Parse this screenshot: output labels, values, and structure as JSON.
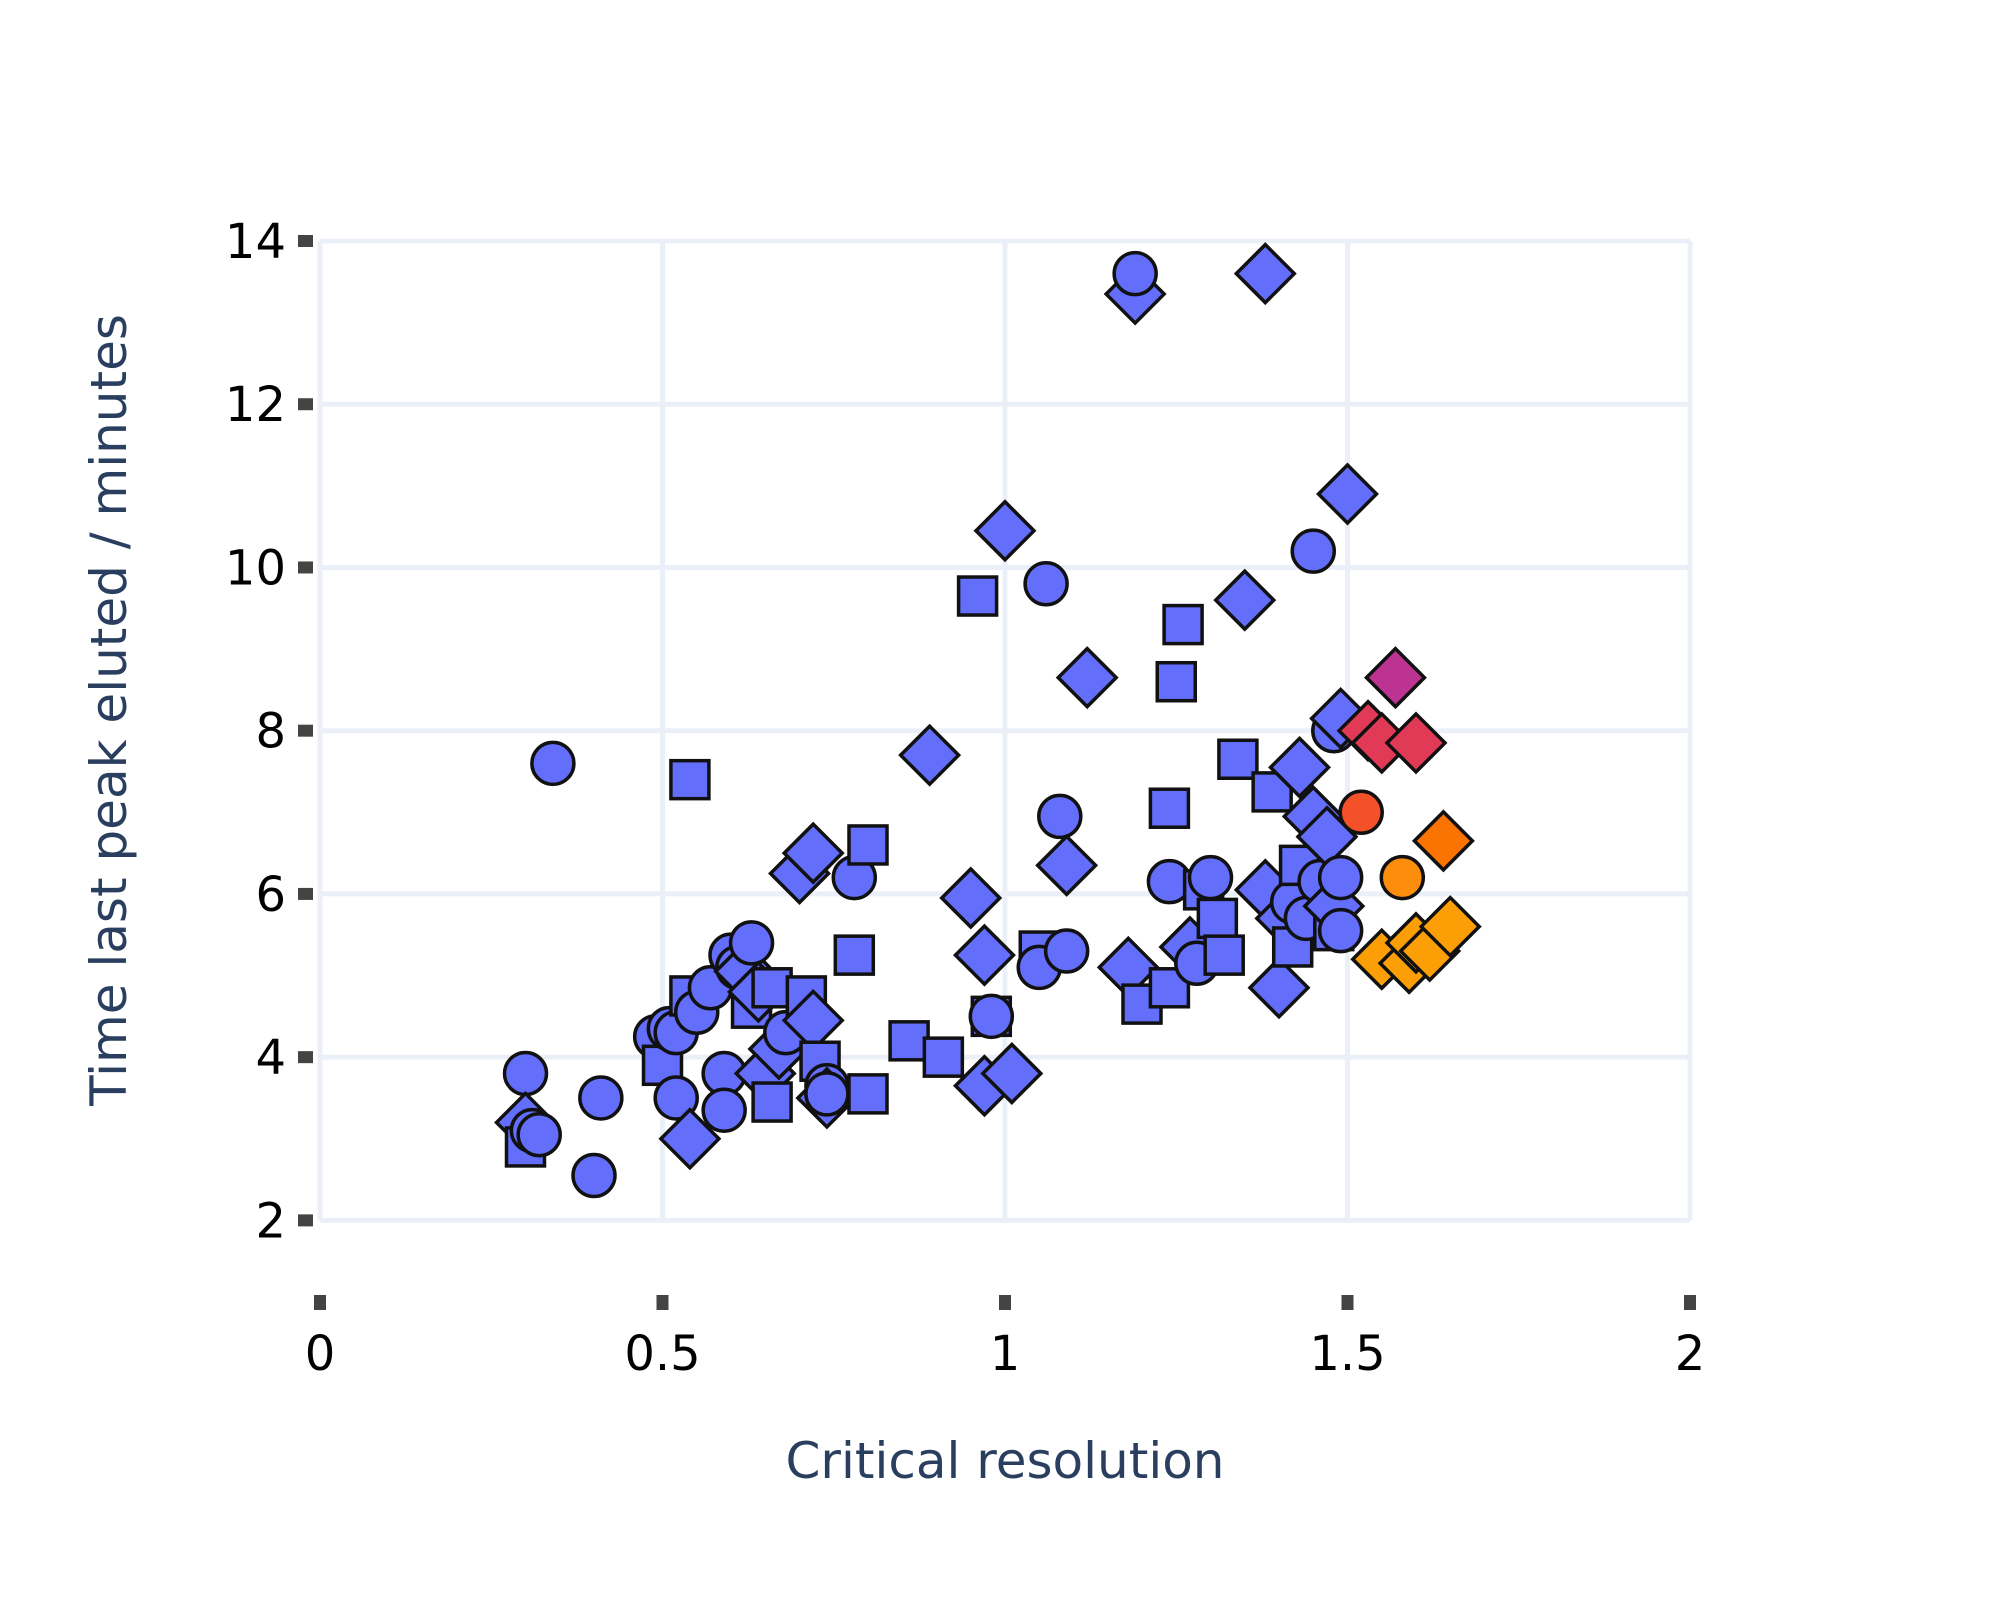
{
  "chart_data": {
    "type": "scatter",
    "xlabel": "Critical resolution",
    "ylabel": "Time last peak eluted / minutes",
    "xlim": [
      0,
      2
    ],
    "ylim": [
      1,
      14
    ],
    "x_ticks": [
      0,
      0.5,
      1,
      1.5,
      2
    ],
    "x_tick_labels": [
      "0",
      "0.5",
      "1",
      "1.5",
      "2"
    ],
    "y_ticks": [
      2,
      4,
      6,
      8,
      10,
      12,
      14
    ],
    "y_tick_labels": [
      "2",
      "4",
      "6",
      "8",
      "10",
      "12",
      "14"
    ],
    "grid": true,
    "legend": "none",
    "colors": {
      "base": "#636efa",
      "magenta": "#bd3392",
      "crimson": "#e03a56",
      "red_orange": "#f4502a",
      "dark_orange": "#fb7300",
      "orange": "#fd8d0d",
      "amber": "#fc9f07",
      "marker_outline": "#111111",
      "grid": "#ebf0f8",
      "axis_title": "#2a3f5f"
    },
    "points": [
      {
        "x": 0.3,
        "y": 3.8,
        "symbol": "circle",
        "color": "#636efa"
      },
      {
        "x": 0.3,
        "y": 3.2,
        "symbol": "diamond",
        "color": "#636efa"
      },
      {
        "x": 0.3,
        "y": 2.9,
        "symbol": "square",
        "color": "#636efa"
      },
      {
        "x": 0.31,
        "y": 3.1,
        "symbol": "circle",
        "color": "#636efa"
      },
      {
        "x": 0.32,
        "y": 3.05,
        "symbol": "circle",
        "color": "#636efa"
      },
      {
        "x": 0.34,
        "y": 7.6,
        "symbol": "circle",
        "color": "#636efa"
      },
      {
        "x": 0.4,
        "y": 2.55,
        "symbol": "circle",
        "color": "#636efa"
      },
      {
        "x": 0.41,
        "y": 3.5,
        "symbol": "circle",
        "color": "#636efa"
      },
      {
        "x": 0.49,
        "y": 4.25,
        "symbol": "circle",
        "color": "#636efa"
      },
      {
        "x": 0.5,
        "y": 3.9,
        "symbol": "square",
        "color": "#636efa"
      },
      {
        "x": 0.51,
        "y": 4.35,
        "symbol": "circle",
        "color": "#636efa"
      },
      {
        "x": 0.52,
        "y": 4.3,
        "symbol": "circle",
        "color": "#636efa"
      },
      {
        "x": 0.52,
        "y": 3.5,
        "symbol": "circle",
        "color": "#636efa"
      },
      {
        "x": 0.54,
        "y": 3.0,
        "symbol": "diamond",
        "color": "#636efa"
      },
      {
        "x": 0.54,
        "y": 7.4,
        "symbol": "square",
        "color": "#636efa"
      },
      {
        "x": 0.54,
        "y": 4.75,
        "symbol": "square",
        "color": "#636efa"
      },
      {
        "x": 0.55,
        "y": 4.55,
        "symbol": "circle",
        "color": "#636efa"
      },
      {
        "x": 0.57,
        "y": 4.85,
        "symbol": "circle",
        "color": "#636efa"
      },
      {
        "x": 0.59,
        "y": 3.8,
        "symbol": "circle",
        "color": "#636efa"
      },
      {
        "x": 0.59,
        "y": 3.35,
        "symbol": "circle",
        "color": "#636efa"
      },
      {
        "x": 0.6,
        "y": 5.25,
        "symbol": "circle",
        "color": "#636efa"
      },
      {
        "x": 0.61,
        "y": 5.1,
        "symbol": "circle",
        "color": "#636efa"
      },
      {
        "x": 0.62,
        "y": 5.05,
        "symbol": "diamond",
        "color": "#636efa"
      },
      {
        "x": 0.63,
        "y": 5.4,
        "symbol": "circle",
        "color": "#636efa"
      },
      {
        "x": 0.63,
        "y": 4.6,
        "symbol": "square",
        "color": "#636efa"
      },
      {
        "x": 0.64,
        "y": 4.8,
        "symbol": "diamond",
        "color": "#636efa"
      },
      {
        "x": 0.65,
        "y": 3.8,
        "symbol": "diamond",
        "color": "#636efa"
      },
      {
        "x": 0.66,
        "y": 4.85,
        "symbol": "square",
        "color": "#636efa"
      },
      {
        "x": 0.66,
        "y": 3.45,
        "symbol": "square",
        "color": "#636efa"
      },
      {
        "x": 0.67,
        "y": 4.1,
        "symbol": "diamond",
        "color": "#636efa"
      },
      {
        "x": 0.68,
        "y": 4.3,
        "symbol": "circle",
        "color": "#636efa"
      },
      {
        "x": 0.7,
        "y": 6.25,
        "symbol": "diamond",
        "color": "#636efa"
      },
      {
        "x": 0.71,
        "y": 4.75,
        "symbol": "square",
        "color": "#636efa"
      },
      {
        "x": 0.72,
        "y": 6.5,
        "symbol": "diamond",
        "color": "#636efa"
      },
      {
        "x": 0.72,
        "y": 4.45,
        "symbol": "diamond",
        "color": "#636efa"
      },
      {
        "x": 0.73,
        "y": 3.95,
        "symbol": "square",
        "color": "#636efa"
      },
      {
        "x": 0.74,
        "y": 3.65,
        "symbol": "circle",
        "color": "#636efa"
      },
      {
        "x": 0.74,
        "y": 3.5,
        "symbol": "diamond",
        "color": "#636efa"
      },
      {
        "x": 0.74,
        "y": 3.55,
        "symbol": "circle",
        "color": "#636efa"
      },
      {
        "x": 0.78,
        "y": 5.25,
        "symbol": "square",
        "color": "#636efa"
      },
      {
        "x": 0.78,
        "y": 6.2,
        "symbol": "circle",
        "color": "#636efa"
      },
      {
        "x": 0.8,
        "y": 6.6,
        "symbol": "square",
        "color": "#636efa"
      },
      {
        "x": 0.8,
        "y": 3.55,
        "symbol": "square",
        "color": "#636efa"
      },
      {
        "x": 0.86,
        "y": 4.2,
        "symbol": "square",
        "color": "#636efa"
      },
      {
        "x": 0.89,
        "y": 7.7,
        "symbol": "diamond",
        "color": "#636efa"
      },
      {
        "x": 0.91,
        "y": 4.0,
        "symbol": "square",
        "color": "#636efa"
      },
      {
        "x": 0.95,
        "y": 5.95,
        "symbol": "diamond",
        "color": "#636efa"
      },
      {
        "x": 0.96,
        "y": 9.65,
        "symbol": "square",
        "color": "#636efa"
      },
      {
        "x": 0.97,
        "y": 5.25,
        "symbol": "diamond",
        "color": "#636efa"
      },
      {
        "x": 0.97,
        "y": 3.65,
        "symbol": "diamond",
        "color": "#636efa"
      },
      {
        "x": 0.98,
        "y": 4.5,
        "symbol": "square",
        "color": "#636efa"
      },
      {
        "x": 0.98,
        "y": 4.5,
        "symbol": "circle",
        "color": "#636efa"
      },
      {
        "x": 1.0,
        "y": 10.45,
        "symbol": "diamond",
        "color": "#636efa"
      },
      {
        "x": 1.01,
        "y": 3.8,
        "symbol": "diamond",
        "color": "#636efa"
      },
      {
        "x": 1.05,
        "y": 5.3,
        "symbol": "square",
        "color": "#636efa"
      },
      {
        "x": 1.05,
        "y": 5.1,
        "symbol": "circle",
        "color": "#636efa"
      },
      {
        "x": 1.06,
        "y": 9.8,
        "symbol": "circle",
        "color": "#636efa"
      },
      {
        "x": 1.08,
        "y": 6.95,
        "symbol": "circle",
        "color": "#636efa"
      },
      {
        "x": 1.09,
        "y": 6.35,
        "symbol": "diamond",
        "color": "#636efa"
      },
      {
        "x": 1.09,
        "y": 5.3,
        "symbol": "circle",
        "color": "#636efa"
      },
      {
        "x": 1.12,
        "y": 8.65,
        "symbol": "diamond",
        "color": "#636efa"
      },
      {
        "x": 1.18,
        "y": 5.1,
        "symbol": "diamond",
        "color": "#636efa"
      },
      {
        "x": 1.19,
        "y": 13.35,
        "symbol": "diamond",
        "color": "#636efa"
      },
      {
        "x": 1.19,
        "y": 13.6,
        "symbol": "circle",
        "color": "#636efa"
      },
      {
        "x": 1.2,
        "y": 4.65,
        "symbol": "square",
        "color": "#636efa"
      },
      {
        "x": 1.24,
        "y": 4.85,
        "symbol": "square",
        "color": "#636efa"
      },
      {
        "x": 1.24,
        "y": 7.05,
        "symbol": "square",
        "color": "#636efa"
      },
      {
        "x": 1.24,
        "y": 6.15,
        "symbol": "circle",
        "color": "#636efa"
      },
      {
        "x": 1.25,
        "y": 8.6,
        "symbol": "square",
        "color": "#636efa"
      },
      {
        "x": 1.26,
        "y": 9.3,
        "symbol": "square",
        "color": "#636efa"
      },
      {
        "x": 1.27,
        "y": 5.35,
        "symbol": "diamond",
        "color": "#636efa"
      },
      {
        "x": 1.28,
        "y": 5.15,
        "symbol": "circle",
        "color": "#636efa"
      },
      {
        "x": 1.29,
        "y": 6.05,
        "symbol": "square",
        "color": "#636efa"
      },
      {
        "x": 1.3,
        "y": 6.2,
        "symbol": "circle",
        "color": "#636efa"
      },
      {
        "x": 1.31,
        "y": 5.7,
        "symbol": "square",
        "color": "#636efa"
      },
      {
        "x": 1.32,
        "y": 5.25,
        "symbol": "square",
        "color": "#636efa"
      },
      {
        "x": 1.34,
        "y": 7.65,
        "symbol": "square",
        "color": "#636efa"
      },
      {
        "x": 1.35,
        "y": 9.6,
        "symbol": "diamond",
        "color": "#636efa"
      },
      {
        "x": 1.38,
        "y": 13.6,
        "symbol": "diamond",
        "color": "#636efa"
      },
      {
        "x": 1.38,
        "y": 6.05,
        "symbol": "diamond",
        "color": "#636efa"
      },
      {
        "x": 1.39,
        "y": 7.25,
        "symbol": "square",
        "color": "#636efa"
      },
      {
        "x": 1.4,
        "y": 4.85,
        "symbol": "diamond",
        "color": "#636efa"
      },
      {
        "x": 1.41,
        "y": 5.7,
        "symbol": "diamond",
        "color": "#636efa"
      },
      {
        "x": 1.42,
        "y": 5.9,
        "symbol": "circle",
        "color": "#636efa"
      },
      {
        "x": 1.42,
        "y": 5.35,
        "symbol": "square",
        "color": "#636efa"
      },
      {
        "x": 1.43,
        "y": 7.55,
        "symbol": "diamond",
        "color": "#636efa"
      },
      {
        "x": 1.43,
        "y": 6.35,
        "symbol": "square",
        "color": "#636efa"
      },
      {
        "x": 1.44,
        "y": 5.7,
        "symbol": "circle",
        "color": "#636efa"
      },
      {
        "x": 1.45,
        "y": 10.2,
        "symbol": "circle",
        "color": "#636efa"
      },
      {
        "x": 1.45,
        "y": 6.95,
        "symbol": "diamond",
        "color": "#636efa"
      },
      {
        "x": 1.46,
        "y": 6.15,
        "symbol": "circle",
        "color": "#636efa"
      },
      {
        "x": 1.47,
        "y": 6.7,
        "symbol": "diamond",
        "color": "#636efa"
      },
      {
        "x": 1.48,
        "y": 5.55,
        "symbol": "square",
        "color": "#636efa"
      },
      {
        "x": 1.48,
        "y": 5.85,
        "symbol": "diamond",
        "color": "#636efa"
      },
      {
        "x": 1.48,
        "y": 8.0,
        "symbol": "circle",
        "color": "#636efa"
      },
      {
        "x": 1.49,
        "y": 8.15,
        "symbol": "diamond",
        "color": "#636efa"
      },
      {
        "x": 1.49,
        "y": 6.2,
        "symbol": "circle",
        "color": "#636efa"
      },
      {
        "x": 1.49,
        "y": 5.55,
        "symbol": "circle",
        "color": "#636efa"
      },
      {
        "x": 1.5,
        "y": 10.9,
        "symbol": "diamond",
        "color": "#636efa"
      },
      {
        "x": 1.52,
        "y": 7.0,
        "symbol": "circle",
        "color": "#f4502a"
      },
      {
        "x": 1.53,
        "y": 8.0,
        "symbol": "diamond",
        "color": "#e03a56"
      },
      {
        "x": 1.55,
        "y": 5.2,
        "symbol": "diamond",
        "color": "#fc9f07"
      },
      {
        "x": 1.55,
        "y": 7.85,
        "symbol": "diamond",
        "color": "#e03a56"
      },
      {
        "x": 1.57,
        "y": 8.65,
        "symbol": "diamond",
        "color": "#bd3392"
      },
      {
        "x": 1.58,
        "y": 6.2,
        "symbol": "circle",
        "color": "#fd8d0d"
      },
      {
        "x": 1.59,
        "y": 5.15,
        "symbol": "diamond",
        "color": "#fc9f07"
      },
      {
        "x": 1.6,
        "y": 5.4,
        "symbol": "diamond",
        "color": "#fc9f07"
      },
      {
        "x": 1.6,
        "y": 7.85,
        "symbol": "diamond",
        "color": "#e03a56"
      },
      {
        "x": 1.62,
        "y": 5.3,
        "symbol": "diamond",
        "color": "#fc9f07"
      },
      {
        "x": 1.64,
        "y": 6.65,
        "symbol": "diamond",
        "color": "#fb7300"
      },
      {
        "x": 1.65,
        "y": 5.6,
        "symbol": "diamond",
        "color": "#fc9f07"
      }
    ]
  }
}
